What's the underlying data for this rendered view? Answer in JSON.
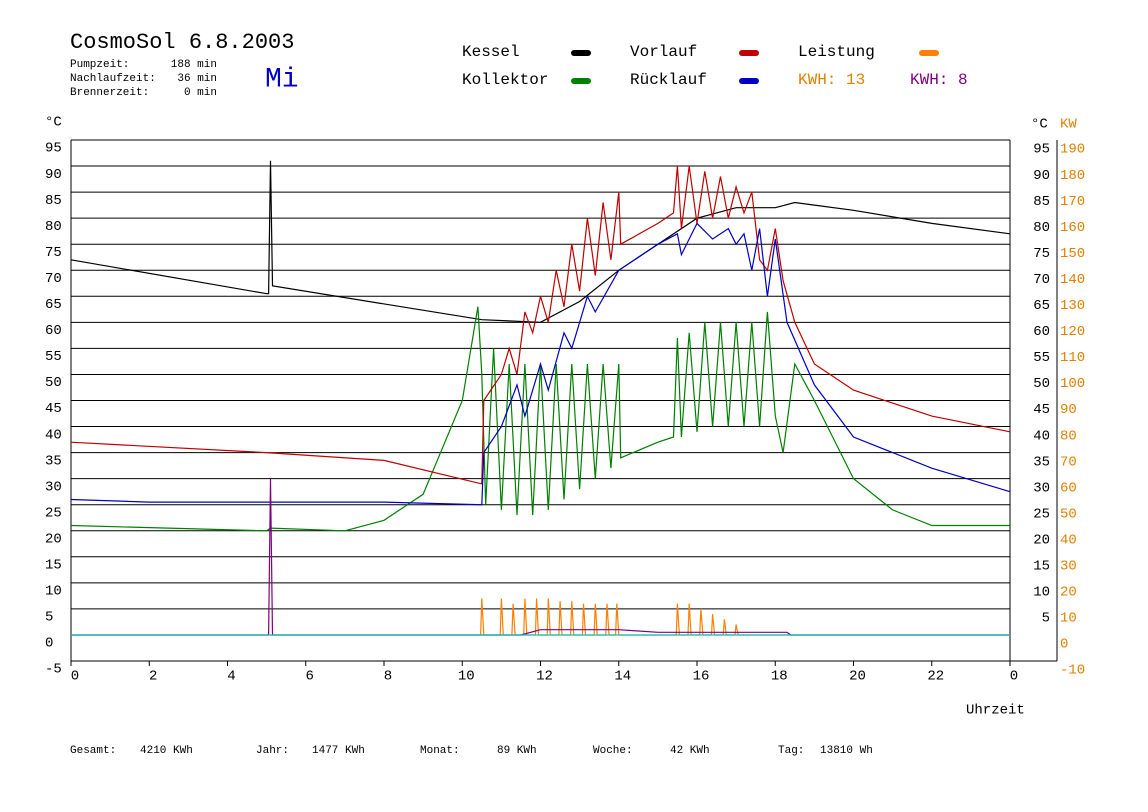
{
  "chart_data": {
    "type": "line",
    "title": "CosmoSol 6.8.2003",
    "weekday": "Mi",
    "info": [
      {
        "label": "Pumpzeit:",
        "value": "188 min"
      },
      {
        "label": "Nachlaufzeit:",
        "value": "36 min"
      },
      {
        "label": "Brennerzeit:",
        "value": "0 min"
      }
    ],
    "ylabel": "°C",
    "y2label_left": "°C",
    "y2label": "KW",
    "xlabel": "Uhrzeit",
    "xlim": [
      0,
      24
    ],
    "xticks": [
      0,
      2,
      4,
      6,
      8,
      10,
      12,
      14,
      16,
      18,
      20,
      22,
      {
        "value": 24,
        "label": "0"
      }
    ],
    "ylim": [
      -5,
      95
    ],
    "yticks": [
      95,
      90,
      85,
      80,
      75,
      70,
      65,
      60,
      55,
      50,
      45,
      40,
      35,
      30,
      25,
      20,
      15,
      10,
      5,
      0,
      -5
    ],
    "yticks_right": [
      95,
      90,
      85,
      80,
      75,
      70,
      65,
      60,
      55,
      50,
      45,
      40,
      35,
      30,
      25,
      20,
      15,
      10,
      5
    ],
    "y2lim": [
      -10,
      190
    ],
    "y2ticks": [
      190,
      180,
      170,
      160,
      150,
      140,
      130,
      120,
      110,
      100,
      90,
      80,
      70,
      60,
      50,
      40,
      30,
      20,
      10,
      0,
      -10
    ],
    "y2color": "#e08000",
    "grid": true,
    "series": [
      {
        "name": "Kessel",
        "color": "#000000",
        "x": [
          0,
          5.0,
          5.05,
          5.1,
          5.15,
          10.5,
          12,
          13,
          14,
          15,
          16,
          17,
          18,
          18.5,
          19,
          20,
          22,
          24
        ],
        "values": [
          72,
          65.5,
          65.5,
          91,
          67,
          60.5,
          60,
          64,
          70,
          75,
          80,
          82,
          82,
          83,
          82.5,
          81.5,
          79,
          77
        ]
      },
      {
        "name": "Kollektor",
        "color": "#008000",
        "x": [
          0,
          5,
          5.1,
          7,
          8,
          9,
          10,
          10.4,
          10.5,
          10.6,
          10.8,
          11,
          11.2,
          11.4,
          11.6,
          11.8,
          12,
          12.2,
          12.4,
          12.6,
          12.8,
          13,
          13.2,
          13.4,
          13.6,
          13.8,
          14,
          14.05,
          15,
          15.4,
          15.5,
          15.6,
          15.8,
          16,
          16.2,
          16.4,
          16.6,
          16.8,
          17,
          17.2,
          17.4,
          17.6,
          17.8,
          18,
          18.2,
          18.5,
          19,
          20,
          21,
          22,
          24
        ],
        "values": [
          21,
          20,
          20.5,
          20,
          22,
          27,
          45,
          63,
          50,
          25,
          55,
          24,
          52,
          23,
          52,
          23,
          52,
          24,
          52,
          26,
          52,
          28,
          52,
          30,
          52,
          32,
          52,
          34,
          37,
          38,
          57,
          38,
          58,
          39,
          60,
          40,
          60,
          40,
          60,
          40,
          60,
          40,
          62,
          42,
          35,
          52,
          45,
          30,
          24,
          21,
          21
        ]
      },
      {
        "name": "Vorlauf",
        "color": "#c00000",
        "x": [
          0,
          5,
          8,
          10.5,
          10.55,
          11,
          11.2,
          11.4,
          11.6,
          11.8,
          12,
          12.2,
          12.4,
          12.6,
          12.8,
          13,
          13.2,
          13.4,
          13.6,
          13.8,
          14,
          14.05,
          15,
          15.4,
          15.5,
          15.6,
          15.8,
          16,
          16.2,
          16.4,
          16.6,
          16.8,
          17,
          17.2,
          17.4,
          17.6,
          17.8,
          18,
          18.2,
          18.5,
          19,
          20,
          22,
          24
        ],
        "values": [
          37,
          35,
          33.5,
          29,
          45,
          50,
          55,
          50,
          62,
          58,
          65,
          60,
          70,
          63,
          75,
          66,
          80,
          69,
          83,
          72,
          85,
          75,
          79,
          81,
          90,
          78,
          90,
          79,
          89,
          80,
          88,
          80,
          86,
          81,
          85,
          72,
          70,
          78,
          68,
          60,
          52,
          47,
          42,
          39
        ]
      },
      {
        "name": "Rücklauf",
        "color": "#0000c0",
        "x": [
          0,
          2,
          8,
          10.5,
          10.55,
          11,
          11.4,
          11.6,
          12,
          12.2,
          12.6,
          12.8,
          13.2,
          13.4,
          14,
          15,
          15.5,
          15.6,
          16,
          16.4,
          16.8,
          17,
          17.2,
          17.4,
          17.6,
          17.8,
          18,
          18.3,
          19,
          20,
          22,
          24
        ],
        "values": [
          26,
          25.5,
          25.5,
          25,
          35,
          40,
          48,
          42,
          52,
          47,
          58,
          55,
          65,
          62,
          70,
          75,
          77,
          73,
          79,
          76,
          78,
          75,
          77,
          70,
          78,
          65,
          76,
          60,
          48,
          38,
          32,
          27.5
        ]
      },
      {
        "name": "Leistung",
        "color": "#ff8000",
        "axis": "y2",
        "x": [
          0,
          10.47,
          10.5,
          10.55,
          10.97,
          11,
          11.05,
          11.27,
          11.3,
          11.35,
          11.57,
          11.6,
          11.65,
          11.87,
          11.9,
          11.95,
          12.17,
          12.2,
          12.25,
          12.47,
          12.5,
          12.55,
          12.77,
          12.8,
          12.85,
          13.07,
          13.1,
          13.15,
          13.37,
          13.4,
          13.45,
          13.67,
          13.7,
          13.75,
          13.92,
          13.95,
          14,
          15.47,
          15.5,
          15.55,
          15.77,
          15.8,
          15.85,
          16.07,
          16.1,
          16.15,
          16.37,
          16.4,
          16.45,
          16.67,
          16.7,
          16.75,
          16.97,
          17,
          17.05,
          24
        ],
        "values": [
          0,
          0,
          14,
          0,
          0,
          14,
          0,
          0,
          12,
          0,
          0,
          14,
          0,
          0,
          14,
          0,
          0,
          14,
          0,
          0,
          13,
          0,
          0,
          13,
          0,
          0,
          12,
          0,
          0,
          12,
          0,
          0,
          12,
          0,
          0,
          12,
          0,
          0,
          12,
          0,
          0,
          12,
          0,
          0,
          10,
          0,
          0,
          8,
          0,
          0,
          6,
          0,
          0,
          4,
          0,
          0
        ]
      },
      {
        "color": "#800080",
        "x": [
          0,
          5.05,
          5.1,
          5.15,
          11.5,
          12,
          14,
          15,
          18.3,
          18.4,
          24
        ],
        "values": [
          0,
          0,
          30,
          0,
          0,
          1,
          1,
          0.5,
          0.5,
          0,
          0
        ]
      },
      {
        "color": "#00c8c8",
        "x": [
          0,
          24
        ],
        "values": [
          0,
          0
        ]
      }
    ],
    "legend_extra": [
      {
        "text": "KWH: 13",
        "color": "#e08000"
      },
      {
        "text": "KWH: 8",
        "color": "#800080"
      }
    ],
    "footer": [
      {
        "label": "Gesamt:",
        "value": "4210 KWh"
      },
      {
        "label": "Jahr:",
        "value": "1477 KWh"
      },
      {
        "label": "Monat:",
        "value": "89 KWh"
      },
      {
        "label": "Woche:",
        "value": "42 KWh"
      },
      {
        "label": "Tag:",
        "value": "13810 Wh"
      }
    ]
  }
}
